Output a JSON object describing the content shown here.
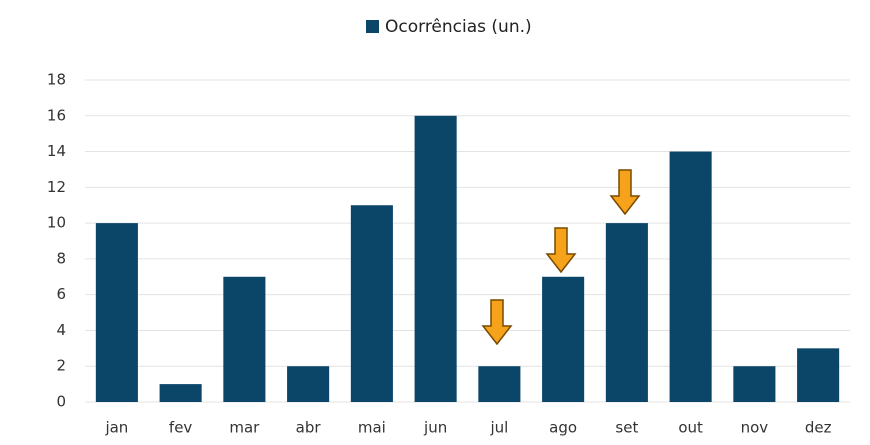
{
  "chart_data": {
    "type": "bar",
    "series": [
      {
        "name": "Ocorrências (un.)",
        "color": "#0b4668",
        "values": [
          10,
          1,
          7,
          2,
          11,
          16,
          2,
          7,
          10,
          14,
          2,
          3
        ]
      }
    ],
    "categories": [
      "jan",
      "fev",
      "mar",
      "abr",
      "mai",
      "jun",
      "jul",
      "ago",
      "set",
      "out",
      "nov",
      "dez"
    ],
    "ylim": [
      0,
      18
    ],
    "yticks": [
      0,
      2,
      4,
      6,
      8,
      10,
      12,
      14,
      16,
      18
    ],
    "grid": true,
    "legend": "top"
  }
}
